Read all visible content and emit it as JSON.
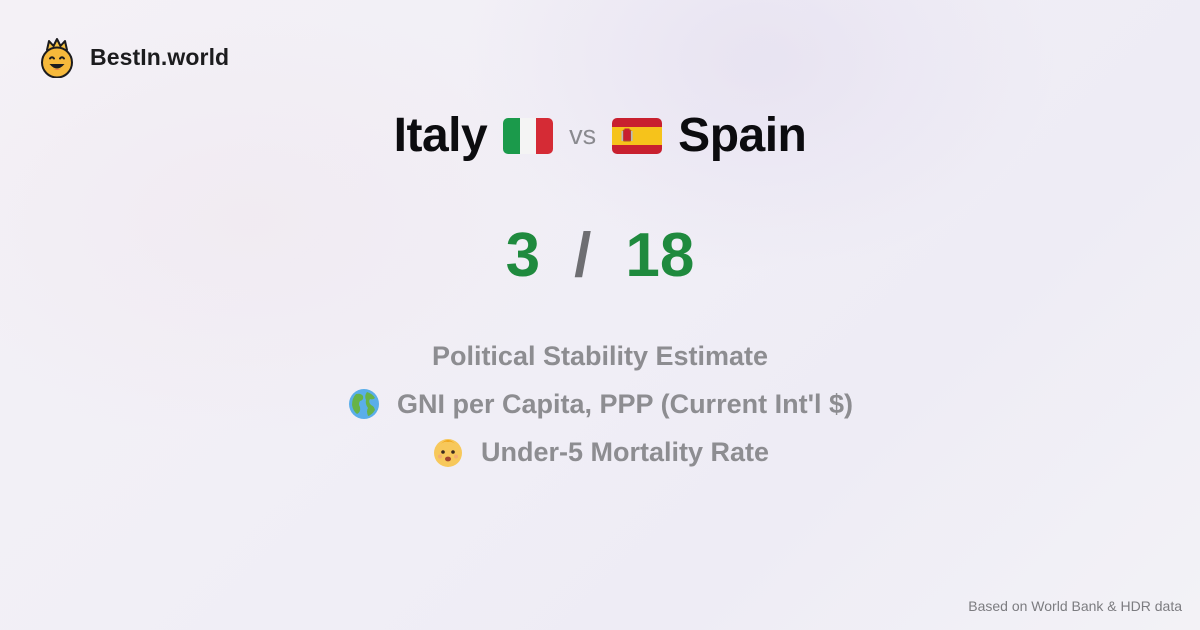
{
  "brand": {
    "name": "BestIn.world",
    "logo_icon": "crowned-smiley-icon"
  },
  "comparison": {
    "left_country": "Italy",
    "left_flag_icon": "italy-flag-icon",
    "vs_label": "vs",
    "right_country": "Spain",
    "right_flag_icon": "spain-flag-icon"
  },
  "score": {
    "left": "3",
    "separator": "/",
    "right": "18",
    "color": "#1f8a3e"
  },
  "metrics": [
    {
      "icon": "",
      "label": "Political Stability Estimate"
    },
    {
      "icon": "globe-icon",
      "label": "GNI per Capita, PPP (Current Int'l $)"
    },
    {
      "icon": "baby-icon",
      "label": "Under-5 Mortality Rate"
    }
  ],
  "footer": {
    "source": "Based on World Bank & HDR data"
  }
}
